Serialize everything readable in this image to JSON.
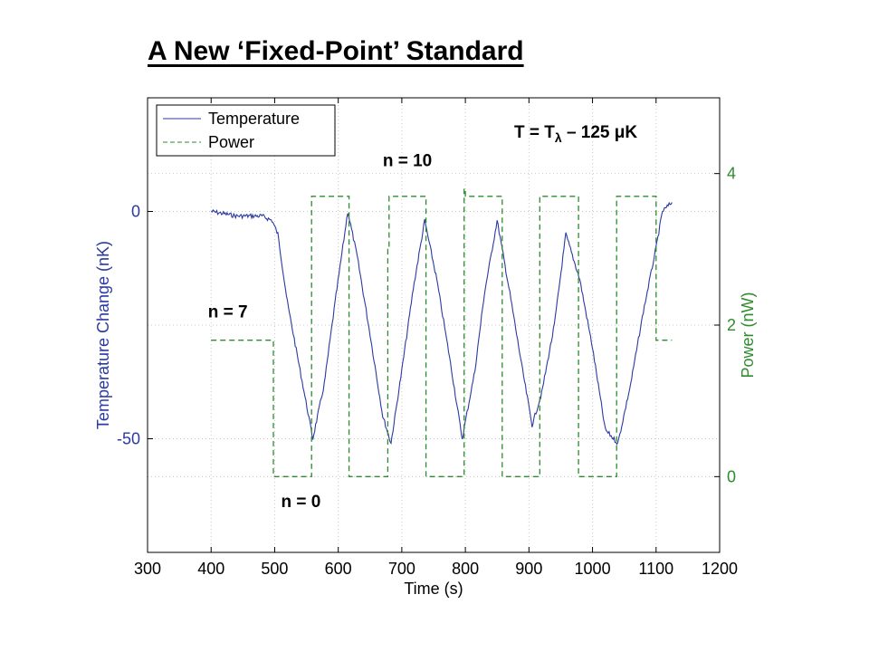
{
  "page": {
    "title": "A New ‘Fixed-Point’ Standard"
  },
  "chart_data": {
    "type": "line",
    "xlabel": "Time (s)",
    "ylabel_left": "Temperature Change (nK)",
    "ylabel_right": "Power (nW)",
    "xlim": [
      300,
      1200
    ],
    "ylim_left": [
      -75,
      25
    ],
    "ylim_right": [
      -1,
      5
    ],
    "x_ticks": [
      300,
      400,
      500,
      600,
      700,
      800,
      900,
      1000,
      1100,
      1200
    ],
    "y_left_ticks": [
      0,
      -50
    ],
    "y_right_ticks": [
      0,
      2,
      4
    ],
    "grid": true,
    "legend_position": "top-left",
    "annotation": {
      "prefix": "T = T",
      "subscript": "λ",
      "suffix": " – 125 μK"
    },
    "labels": [
      {
        "text": "n = 10",
        "x": 670,
        "y_power": 4.1
      },
      {
        "text": "n = 7",
        "x": 395,
        "y_power": 2.1
      },
      {
        "text": "n = 0",
        "x": 510,
        "y_power": -0.4
      }
    ],
    "series": [
      {
        "name": "Temperature",
        "axis": "left",
        "color": "#2b3aa0",
        "style": "solid",
        "x": [
          400,
          440,
          480,
          496,
          505,
          520,
          540,
          560,
          578,
          595,
          615,
          630,
          650,
          670,
          683,
          700,
          718,
          736,
          755,
          775,
          795,
          815,
          830,
          850,
          870,
          890,
          905,
          920,
          940,
          958,
          980,
          1000,
          1020,
          1040,
          1060,
          1080,
          1100,
          1110,
          1125
        ],
        "y": [
          0,
          -1,
          -1,
          -2,
          -5,
          -20,
          -35,
          -50,
          -38,
          -20,
          0,
          -10,
          -27,
          -45,
          -51,
          -35,
          -17,
          -2,
          -15,
          -32,
          -50,
          -35,
          -18,
          -2,
          -18,
          -35,
          -47,
          -40,
          -25,
          -5,
          -15,
          -30,
          -48,
          -51,
          -38,
          -22,
          -8,
          0,
          2
        ]
      },
      {
        "name": "Power",
        "axis": "right",
        "color": "#2e8b2e",
        "style": "dashed",
        "x": [
          400,
          498,
          498,
          558,
          558,
          617,
          617,
          678,
          678,
          680,
          680,
          738,
          738,
          798,
          798,
          800,
          800,
          858,
          858,
          917,
          917,
          978,
          978,
          1038,
          1038,
          1100,
          1100,
          1125
        ],
        "y": [
          1.8,
          1.8,
          0,
          0,
          3.7,
          3.7,
          0,
          0,
          3.0,
          3.0,
          3.7,
          3.7,
          0,
          0,
          3.8,
          3.8,
          3.7,
          3.7,
          0,
          0,
          3.7,
          3.7,
          0,
          0,
          3.7,
          3.7,
          1.8,
          1.8
        ]
      }
    ]
  }
}
